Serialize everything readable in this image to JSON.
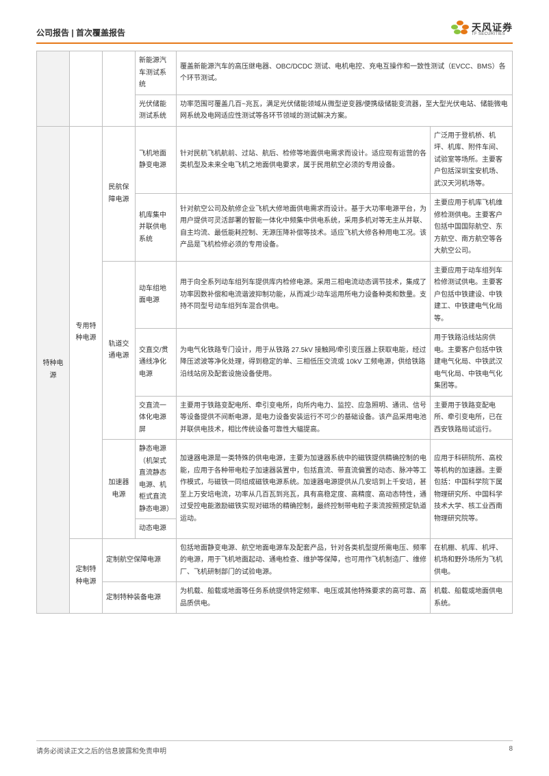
{
  "header": {
    "left": "公司报告 | 首次覆盖报告",
    "logo_cn": "天风证券",
    "logo_en": "TF SECURITIES"
  },
  "colors": {
    "accent": "#e67817",
    "border": "#bfbfbf",
    "text": "#333333",
    "shade": "#f2f2f2"
  },
  "table": {
    "rows": [
      {
        "c4": "新能源汽车测试系统",
        "desc_span": 2,
        "desc": "覆盖新能源汽车的高压继电器、OBC/DCDC 测试、电机电控、充电互操作和一致性测试（EVCC、BMS）各个环节测试。"
      },
      {
        "c4": "光伏储能测试系统",
        "desc_span": 2,
        "desc": "功率范围可覆盖几百~兆瓦，满足光伏储能领域从微型逆变器/便携级储能变流器，至大型光伏电站、储能微电网系统及电网适应性测试等各环节领域的测试解决方案。"
      },
      {
        "c1": "特种电源",
        "c1_rs": 9,
        "c2": "专用特种电源",
        "c2_rs": 7,
        "c3": "民航保障电源",
        "c3_rs": 2,
        "c4": "飞机地面静变电源",
        "desc": "针对民航飞机航前、过站、航后、检修等地面供电需求而设计。适应现有运营的各类机型及未来全电飞机之地面供电要求，属于民用航空必须的专用设备。",
        "app": "广泛用于登机桥、机坪、机库、附件车间、试验室等场所。主要客户包括深圳宝安机场、武汉天河机场等。"
      },
      {
        "c4": "机库集中并联供电系统",
        "desc": "针对航空公司及航修企业飞机大修地面供电需求而设计。基于大功率电源平台，为用户提供可灵活部署的智能一体化中频集中供电系统，采用多机对等无主从并联、自主均流、最低能耗控制、无源压降补偿等技术。适应飞机大修各种用电工况。该产品是飞机检修必须的专用设备。",
        "app": "主要应用于机库飞机维修检测供电。主要客户包括中国国际航空、东方航空、南方航空等各大航空公司。"
      },
      {
        "c3": "轨道交通电源",
        "c3_rs": 3,
        "c4": "动车组地面电源",
        "desc": "用于向全系列动车组列车提供库内检修电源。采用三相电流动态调节技术，集成了功率因数补偿和电流谐波抑制功能，从而减少动车运用所电力设备种类和数量。支持不同型号动车组列车混合供电。",
        "app": "主要应用于动车组列车检修测试供电。主要客户包括中铁建设、中铁建工、中铁建电气化局等。"
      },
      {
        "c4": "交直交/贯通线净化电源",
        "desc": "为电气化铁路专门设计，用于从铁路 27.5kV 接触网/牵引变压器上获取电能，经过降压滤波等净化处理，得到稳定的单、三相低压交流或 10kV 工频电源，供给铁路沿线站房及配套设施设备使用。",
        "app": "用于铁路沿线站房供电。主要客户包括中铁建电气化局、中铁武汉电气化局、中铁电气化集团等。"
      },
      {
        "c4": "交直流一体化电源屏",
        "desc": "主要用于铁路变配电所、牵引变电所，向所内电力、监控、应急照明、通讯、信号等设备提供不间断电源，是电力设备安装运行不可少的基础设备。该产品采用电池并联供电技术，相比传统设备可靠性大幅提高。",
        "app": "主要用于铁路变配电所、牵引变电所，已在西安铁路局试运行。"
      },
      {
        "c3": "加速器电源",
        "c3_rs": 2,
        "c4": "静态电源（机架式直流静态电源、机柜式直流静态电源）",
        "desc_rs": 2,
        "desc": "加速器电源是一类特殊的供电电源，主要为加速器系统中的磁铁提供精确控制的电能，应用于各种带电粒子加速器装置中，包括直流、带直流偏置的动态、脉冲等工作模式，与磁铁一同组成磁铁电源系统。加速器电源提供从几安培到上千安培，甚至上万安培电流，功率从几百瓦到兆瓦，具有高稳定度、高精度、高动态特性，通过受控电能激励磁铁实现对磁场的精确控制，最终控制带电粒子束流按照预定轨道运动。",
        "app_rs": 2,
        "app": "应用于科研院所、高校等机构的加速器。主要包括：中国科学院下属物理研究所、中国科学技术大学、核工业西南物理研究院等。"
      },
      {
        "c4": "动态电源"
      },
      {
        "c2": "定制特种电源",
        "c2_rs": 2,
        "c4": "定制航空保障电源",
        "c4_span": 2,
        "desc": "包括地面静变电源、航空地面电源车及配套产品，针对各类机型提所需电压、频率的电源，用于飞机地面起动、通电检查、维护等保障，也可用作飞机制造厂、维修厂、飞机研制部门的试验电源。",
        "app": "在机棚、机库、机坪、机场和野外场所为飞机供电。"
      },
      {
        "c4": "定制特种装备电源",
        "c4_span": 2,
        "desc": "为机载、船载或地面等任务系统提供特定频率、电压或其他特殊要求的高可靠、高品质供电。",
        "app": "机载、船载或地面供电系统。"
      }
    ]
  },
  "footer": {
    "disclaimer": "请务必阅读正文之后的信息披露和免责申明",
    "page": "8"
  }
}
